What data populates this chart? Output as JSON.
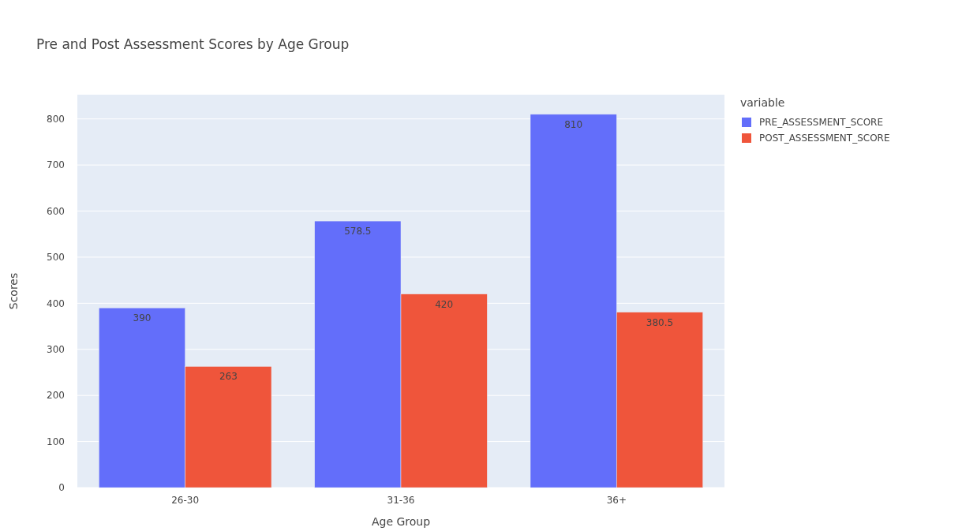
{
  "chart_data": {
    "type": "bar",
    "title": "Pre and Post Assessment Scores by Age Group",
    "xlabel": "Age Group",
    "ylabel": "Scores",
    "legend_title": "variable",
    "categories": [
      "26-30",
      "31-36",
      "36+"
    ],
    "series": [
      {
        "name": "PRE_ASSESSMENT_SCORE",
        "color": "#636efa",
        "values": [
          390,
          578.5,
          810
        ]
      },
      {
        "name": "POST_ASSESSMENT_SCORE",
        "color": "#ef553b",
        "values": [
          263,
          420,
          380.5
        ]
      }
    ],
    "ylim": [
      0,
      852.6
    ],
    "yticks": [
      0,
      100,
      200,
      300,
      400,
      500,
      600,
      700,
      800
    ],
    "grid": true,
    "legend": "top right",
    "data_labels": true
  }
}
